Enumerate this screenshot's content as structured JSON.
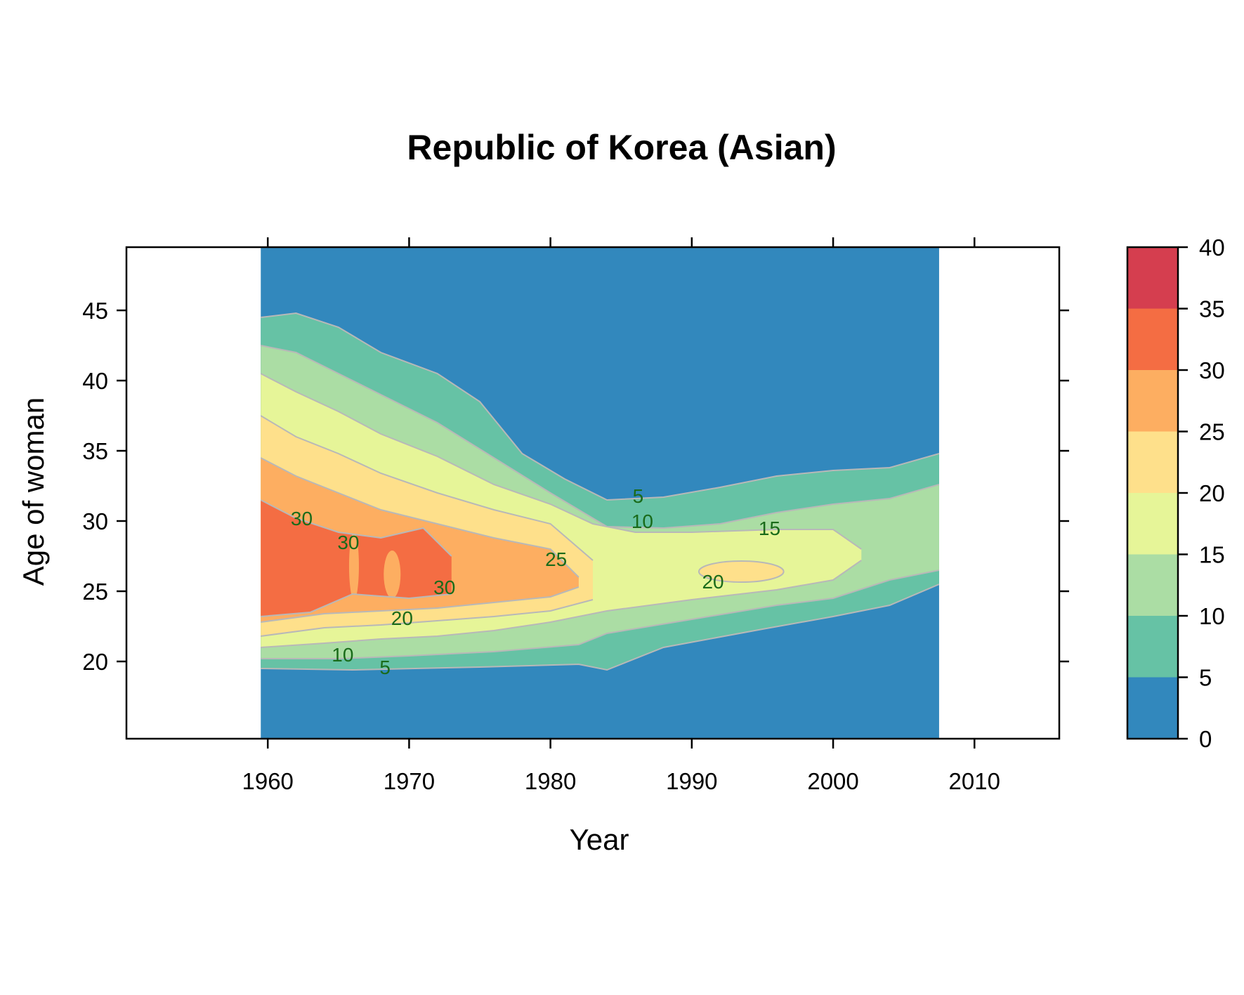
{
  "chart_data": {
    "type": "heatmap",
    "title": "Republic of Korea (Asian)",
    "xlabel": "Year",
    "ylabel": "Age of woman",
    "xlim": [
      1950,
      2016
    ],
    "ylim": [
      14.5,
      49.5
    ],
    "x_ticks": [
      1960,
      1970,
      1980,
      1990,
      2000,
      2010
    ],
    "y_ticks": [
      20,
      25,
      30,
      35,
      40,
      45
    ],
    "data_extent": {
      "x": [
        1959.5,
        2007.5
      ],
      "y": [
        14.5,
        49.5
      ]
    },
    "colorkey": {
      "breaks": [
        0,
        5,
        10,
        15,
        20,
        25,
        30,
        35,
        40
      ],
      "colors": [
        "#3288bd",
        "#66c2a5",
        "#abdda4",
        "#e6f598",
        "#fee08b",
        "#fdae61",
        "#f46d43",
        "#d53e4f"
      ],
      "tick_labels": [
        "0",
        "5",
        "10",
        "15",
        "20",
        "25",
        "30",
        "35",
        "40"
      ]
    },
    "contour_line_color": "#b8b8b8",
    "bands": [
      {
        "level": 5,
        "outer_low": [
          [
            1959.5,
            19.5
          ],
          [
            1966,
            19.4
          ],
          [
            1975,
            19.6
          ],
          [
            1982,
            19.8
          ],
          [
            1984,
            19.4
          ],
          [
            1988,
            21
          ],
          [
            1995,
            22.3
          ],
          [
            2000,
            23.2
          ],
          [
            2004,
            24
          ],
          [
            2007.5,
            25.5
          ]
        ],
        "outer_high": [
          [
            1959.5,
            44.5
          ],
          [
            1962,
            44.8
          ],
          [
            1965,
            43.8
          ],
          [
            1968,
            42
          ],
          [
            1972,
            40.5
          ],
          [
            1975,
            38.5
          ],
          [
            1978,
            34.8
          ],
          [
            1981,
            33
          ],
          [
            1984,
            31.5
          ],
          [
            1988,
            31.7
          ],
          [
            1992,
            32.4
          ],
          [
            1996,
            33.2
          ],
          [
            2000,
            33.6
          ],
          [
            2004,
            33.8
          ],
          [
            2007.5,
            34.8
          ]
        ]
      },
      {
        "level": 10,
        "outer_low": [
          [
            1959.5,
            20.2
          ],
          [
            1965,
            20.2
          ],
          [
            1970,
            20.4
          ],
          [
            1976,
            20.7
          ],
          [
            1982,
            21.2
          ],
          [
            1984,
            22
          ],
          [
            1990,
            23
          ],
          [
            1996,
            24
          ],
          [
            2000,
            24.5
          ],
          [
            2004,
            25.8
          ],
          [
            2007.5,
            26.5
          ]
        ],
        "outer_high": [
          [
            1959.5,
            42.5
          ],
          [
            1962,
            42
          ],
          [
            1965,
            40.5
          ],
          [
            1968,
            39
          ],
          [
            1972,
            37
          ],
          [
            1976,
            34.5
          ],
          [
            1980,
            32
          ],
          [
            1984,
            29.6
          ],
          [
            1988,
            29.5
          ],
          [
            1992,
            29.8
          ],
          [
            1996,
            30.6
          ],
          [
            2000,
            31.2
          ],
          [
            2004,
            31.6
          ],
          [
            2007.5,
            32.6
          ]
        ]
      },
      {
        "level": 15,
        "outer_low": [
          [
            1959.5,
            21
          ],
          [
            1964,
            21.3
          ],
          [
            1968,
            21.6
          ],
          [
            1972,
            21.8
          ],
          [
            1976,
            22.2
          ],
          [
            1980,
            22.8
          ],
          [
            1984,
            23.6
          ],
          [
            1990,
            24.4
          ],
          [
            1996,
            25.1
          ],
          [
            2000,
            25.8
          ],
          [
            2002,
            27.2
          ]
        ],
        "outer_high": [
          [
            1959.5,
            40.5
          ],
          [
            1962,
            39.2
          ],
          [
            1965,
            37.8
          ],
          [
            1968,
            36.2
          ],
          [
            1972,
            34.6
          ],
          [
            1976,
            32.6
          ],
          [
            1980,
            31.2
          ],
          [
            1983,
            29.8
          ],
          [
            1986,
            29.2
          ],
          [
            1990,
            29.2
          ],
          [
            1996,
            29.4
          ],
          [
            2000,
            29.4
          ],
          [
            2002,
            28
          ]
        ]
      },
      {
        "level": 20,
        "outer_low": [
          [
            1959.5,
            21.8
          ],
          [
            1964,
            22.4
          ],
          [
            1968,
            22.6
          ],
          [
            1972,
            22.9
          ],
          [
            1976,
            23.2
          ],
          [
            1980,
            23.6
          ],
          [
            1983,
            24.4
          ]
        ],
        "outer_high": [
          [
            1959.5,
            37.5
          ],
          [
            1962,
            36
          ],
          [
            1965,
            34.8
          ],
          [
            1968,
            33.4
          ],
          [
            1972,
            32
          ],
          [
            1976,
            30.8
          ],
          [
            1980,
            29.8
          ],
          [
            1983,
            27.2
          ]
        ]
      },
      {
        "level": 25,
        "outer_low": [
          [
            1959.5,
            22.8
          ],
          [
            1964,
            23.4
          ],
          [
            1968,
            23.6
          ],
          [
            1972,
            23.8
          ],
          [
            1976,
            24.2
          ],
          [
            1980,
            24.6
          ],
          [
            1982,
            25.3
          ]
        ],
        "outer_high": [
          [
            1959.5,
            34.5
          ],
          [
            1962,
            33.2
          ],
          [
            1965,
            32
          ],
          [
            1968,
            30.8
          ],
          [
            1972,
            29.8
          ],
          [
            1976,
            28.8
          ],
          [
            1980,
            28
          ],
          [
            1982,
            26
          ]
        ]
      },
      {
        "level": 30,
        "outer_low": [
          [
            1959.5,
            23.2
          ],
          [
            1963,
            23.5
          ],
          [
            1966,
            24.8
          ],
          [
            1970,
            24.5
          ],
          [
            1973,
            24.8
          ]
        ],
        "outer_high": [
          [
            1959.5,
            31.5
          ],
          [
            1962,
            30.2
          ],
          [
            1965,
            29.2
          ],
          [
            1968,
            28.8
          ],
          [
            1971,
            29.5
          ],
          [
            1973,
            27.5
          ]
        ]
      }
    ],
    "island_20": {
      "x_range": [
        1990.5,
        1996.5
      ],
      "center_age": 26.4
    },
    "contour_labels": [
      {
        "text": "30",
        "x": 1962.4,
        "y": 30.2
      },
      {
        "text": "30",
        "x": 1965.7,
        "y": 28.5
      },
      {
        "text": "30",
        "x": 1972.5,
        "y": 25.3
      },
      {
        "text": "20",
        "x": 1969.5,
        "y": 23.1
      },
      {
        "text": "10",
        "x": 1965.3,
        "y": 20.5
      },
      {
        "text": "5",
        "x": 1968.3,
        "y": 19.6
      },
      {
        "text": "25",
        "x": 1980.4,
        "y": 27.3
      },
      {
        "text": "5",
        "x": 1986.2,
        "y": 31.8
      },
      {
        "text": "10",
        "x": 1986.5,
        "y": 30.0
      },
      {
        "text": "15",
        "x": 1995.5,
        "y": 29.5
      },
      {
        "text": "20",
        "x": 1991.5,
        "y": 25.7
      }
    ]
  }
}
